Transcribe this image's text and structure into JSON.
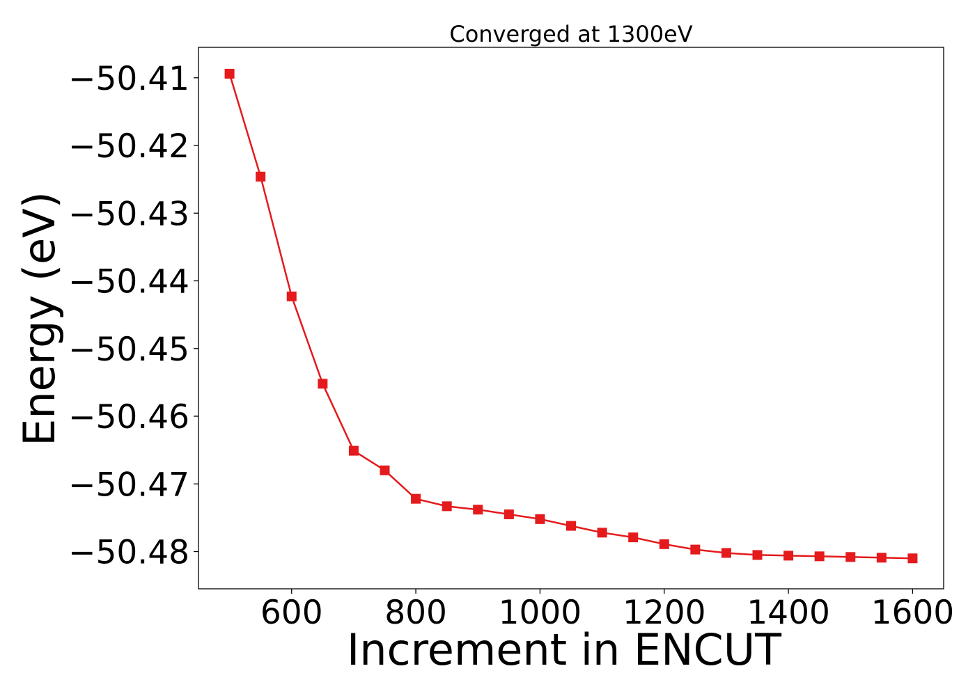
{
  "chart_data": {
    "type": "line",
    "title": "Converged at 1300eV",
    "xlabel": "Increment in ENCUT",
    "ylabel": "Energy (eV)",
    "xlim": [
      450,
      1650
    ],
    "ylim": [
      -50.4855,
      -50.4055
    ],
    "x_ticks": [
      600,
      800,
      1000,
      1200,
      1400,
      1600
    ],
    "x_tick_labels": [
      "600",
      "800",
      "1000",
      "1200",
      "1400",
      "1600"
    ],
    "y_ticks": [
      -50.41,
      -50.42,
      -50.43,
      -50.44,
      -50.45,
      -50.46,
      -50.47,
      -50.48
    ],
    "y_tick_labels": [
      "−50.41",
      "−50.42",
      "−50.43",
      "−50.44",
      "−50.45",
      "−50.46",
      "−50.47",
      "−50.48"
    ],
    "grid": false,
    "legend": "none",
    "series": [
      {
        "color": "#e41a1c",
        "marker": "square",
        "x": [
          500,
          550,
          600,
          650,
          700,
          750,
          800,
          850,
          900,
          950,
          1000,
          1050,
          1100,
          1150,
          1200,
          1250,
          1300,
          1350,
          1400,
          1450,
          1500,
          1550,
          1600
        ],
        "y": [
          -50.4094,
          -50.4246,
          -50.4423,
          -50.4552,
          -50.4651,
          -50.468,
          -50.4722,
          -50.4733,
          -50.4738,
          -50.4745,
          -50.4752,
          -50.4762,
          -50.4772,
          -50.4779,
          -50.4789,
          -50.4797,
          -50.4802,
          -50.4805,
          -50.4806,
          -50.4807,
          -50.4808,
          -50.4809,
          -50.481
        ]
      }
    ]
  }
}
